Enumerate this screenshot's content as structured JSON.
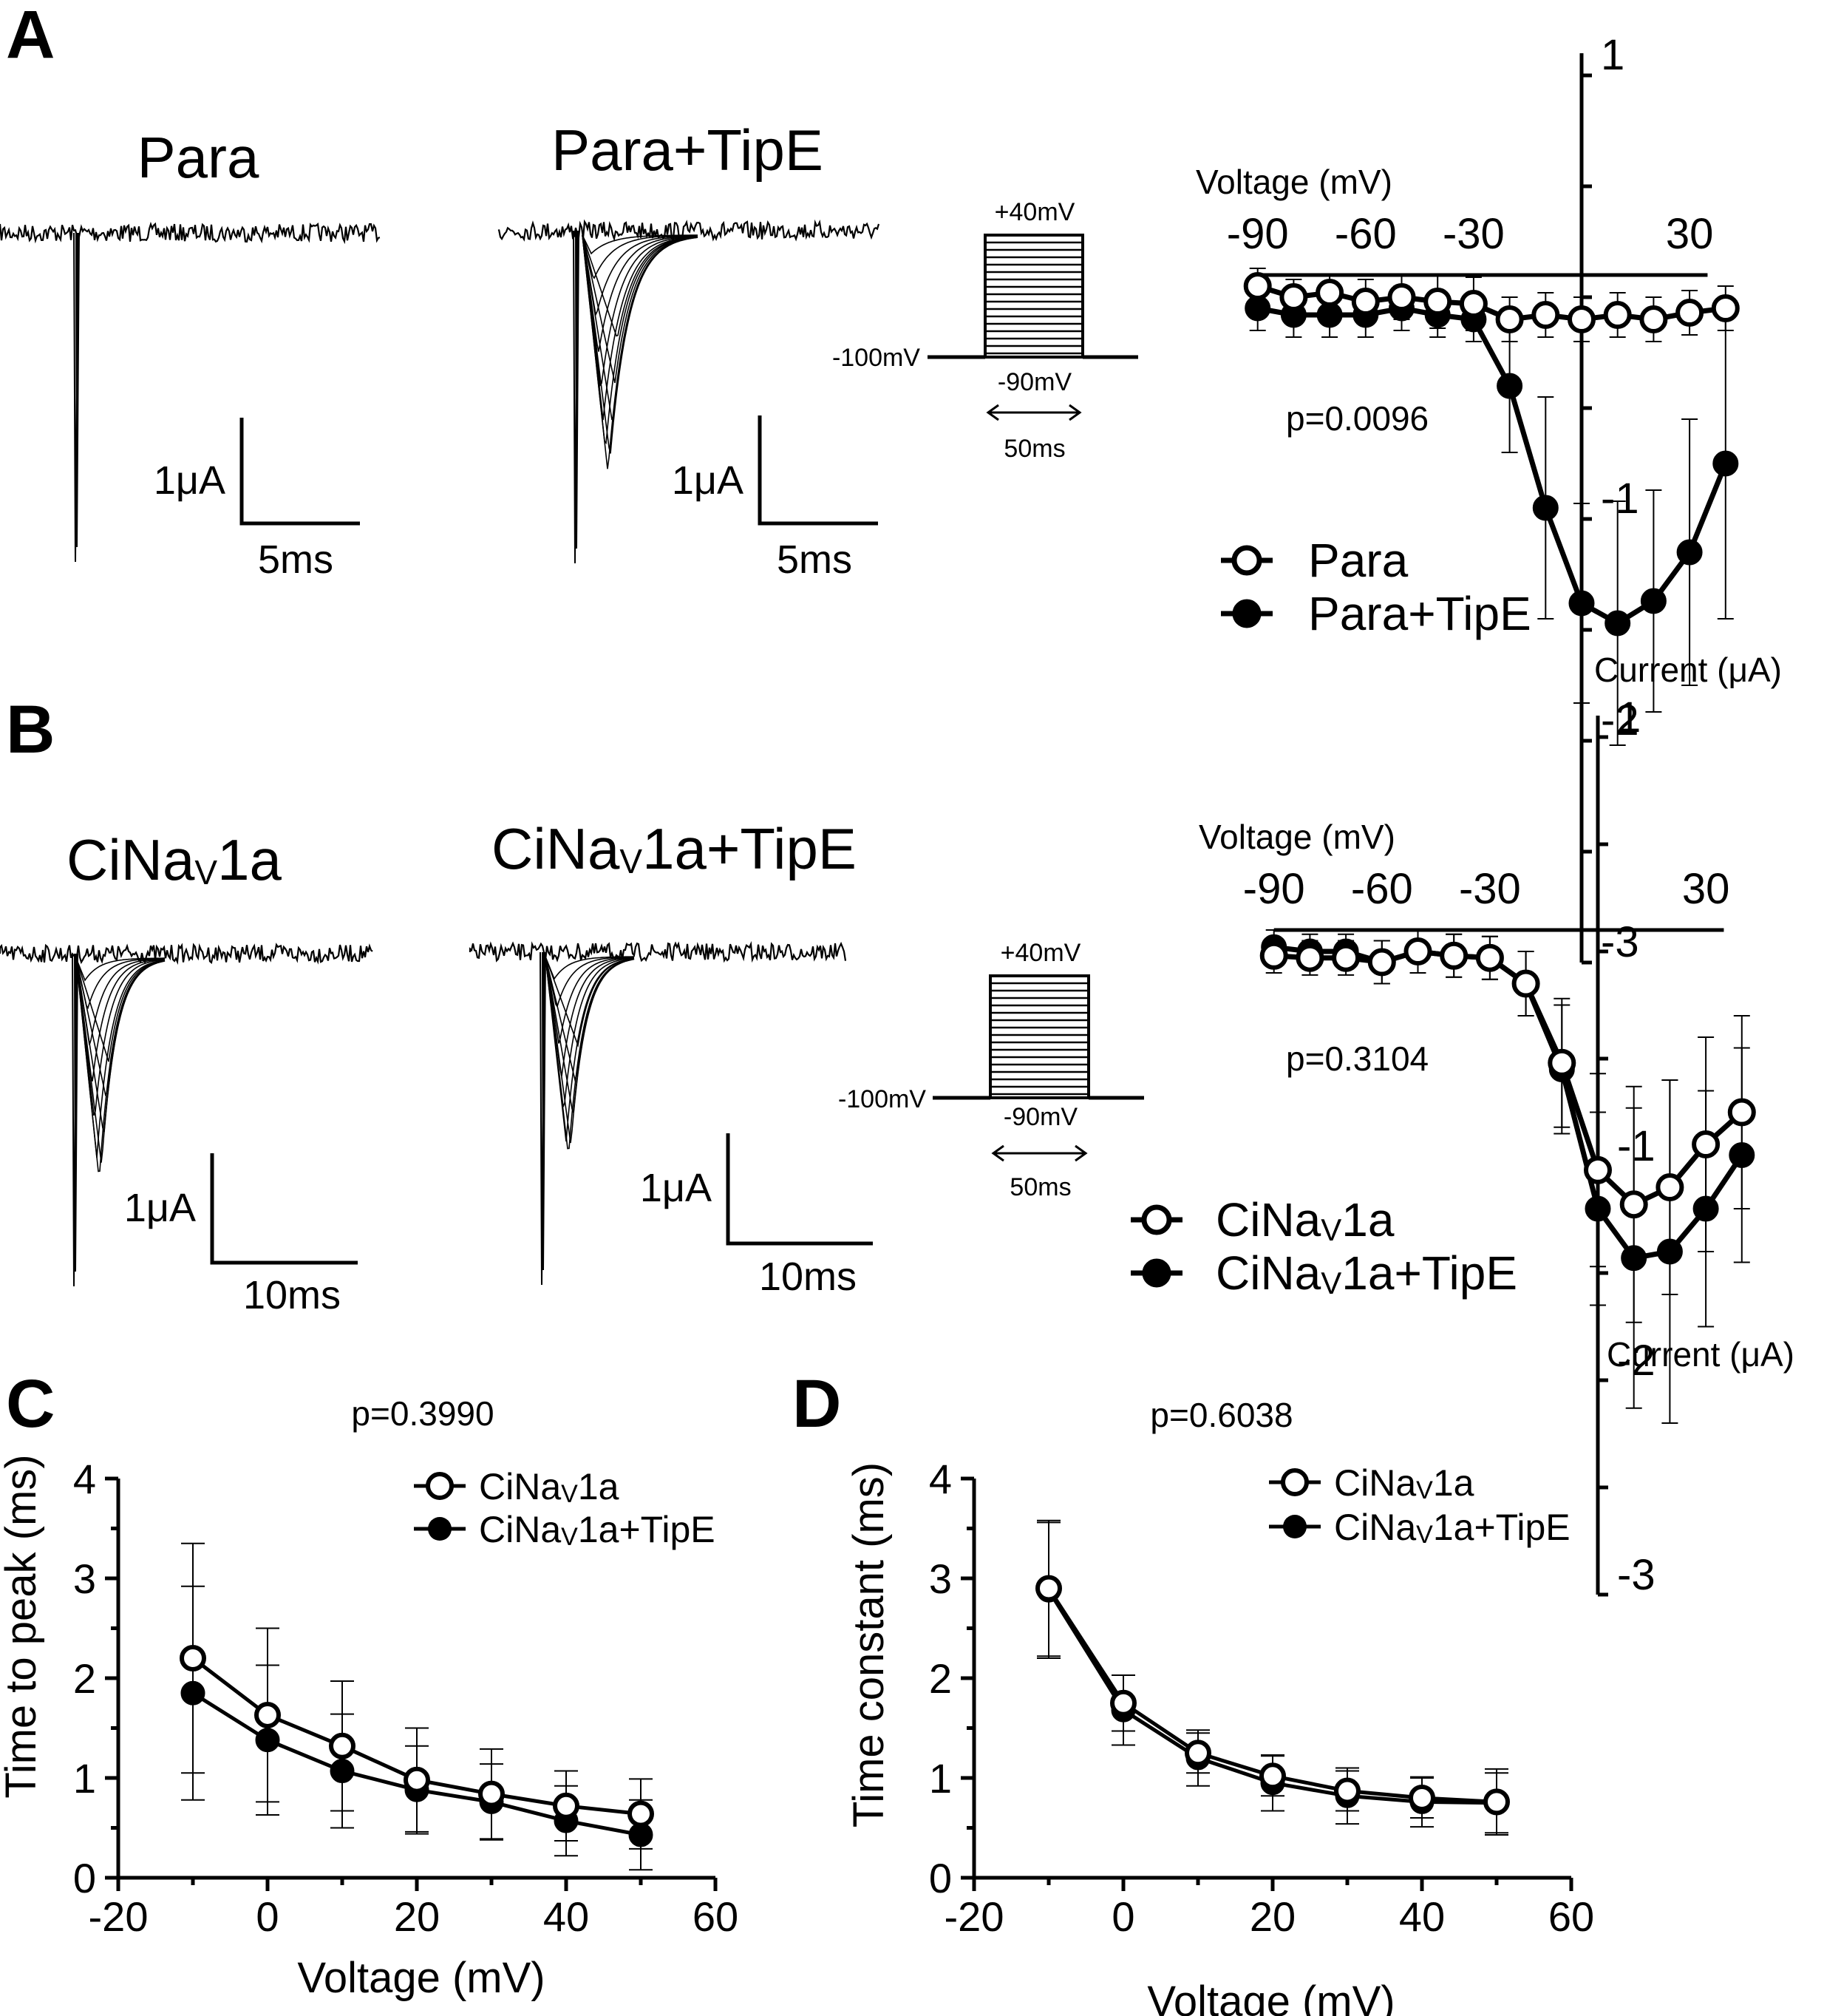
{
  "panels": {
    "A": {
      "letter": "A",
      "trace_titles": [
        "Para",
        "Para+TipE"
      ],
      "scale_bars": [
        {
          "current": "1μA",
          "time": "5ms"
        },
        {
          "current": "1μA",
          "time": "5ms"
        }
      ],
      "protocol": {
        "hold": "-100mV",
        "top": "+40mV",
        "bottom": "-90mV",
        "duration": "50ms"
      }
    },
    "B": {
      "letter": "B",
      "trace_titles": [
        "CiNaV1a",
        "CiNaV1a+TipE"
      ],
      "scale_bars": [
        {
          "current": "1μA",
          "time": "10ms"
        },
        {
          "current": "1μA",
          "time": "10ms"
        }
      ],
      "protocol": {
        "hold": "-100mV",
        "top": "+40mV",
        "bottom": "-90mV",
        "duration": "50ms"
      }
    },
    "C": {
      "letter": "C"
    },
    "D": {
      "letter": "D"
    }
  },
  "chart_data": [
    {
      "id": "A-iv",
      "type": "line",
      "xlabel": "Voltage (mV)",
      "ylabel": "Current (μA)",
      "annotation": "p=0.0096",
      "x_ticks": [
        -90,
        -60,
        -30,
        30
      ],
      "y_ticks": [
        1,
        -1,
        -2,
        -3
      ],
      "xlim": [
        -90,
        35
      ],
      "ylim": [
        -3,
        1
      ],
      "x": [
        -90,
        -80,
        -70,
        -60,
        -50,
        -40,
        -30,
        -20,
        -10,
        0,
        10,
        20,
        30,
        40
      ],
      "series": [
        {
          "name": "Para",
          "marker": "open",
          "values": [
            -0.05,
            -0.1,
            -0.08,
            -0.12,
            -0.1,
            -0.12,
            -0.13,
            -0.2,
            -0.18,
            -0.2,
            -0.18,
            -0.2,
            -0.17,
            -0.15
          ],
          "error": [
            0.08,
            0.08,
            0.08,
            0.1,
            0.1,
            0.12,
            0.12,
            0.1,
            0.1,
            0.1,
            0.1,
            0.1,
            0.1,
            0.1
          ]
        },
        {
          "name": "Para+TipE",
          "marker": "filled",
          "values": [
            -0.15,
            -0.18,
            -0.18,
            -0.18,
            -0.15,
            -0.18,
            -0.2,
            -0.5,
            -1.05,
            -1.48,
            -1.57,
            -1.47,
            -1.25,
            -0.85
          ],
          "error": [
            0.1,
            0.1,
            0.1,
            0.1,
            0.1,
            0.1,
            0.1,
            0.3,
            0.5,
            0.45,
            0.55,
            0.5,
            0.6,
            0.7
          ]
        }
      ]
    },
    {
      "id": "B-iv",
      "type": "line",
      "xlabel": "Voltage (mV)",
      "ylabel": "Current (μA)",
      "annotation": "p=0.3104",
      "x_ticks": [
        -90,
        -60,
        -30,
        30
      ],
      "y_ticks": [
        1,
        -1,
        -2,
        -3
      ],
      "xlim": [
        -90,
        35
      ],
      "ylim": [
        -3,
        1
      ],
      "x": [
        -90,
        -80,
        -70,
        -60,
        -50,
        -40,
        -30,
        -20,
        -10,
        0,
        10,
        20,
        30,
        40
      ],
      "series": [
        {
          "name": "CiNaV1a",
          "marker": "open",
          "values": [
            -0.12,
            -0.13,
            -0.13,
            -0.15,
            -0.1,
            -0.12,
            -0.13,
            -0.25,
            -0.62,
            -1.12,
            -1.28,
            -1.2,
            -1.0,
            -0.85
          ],
          "error": [
            0.08,
            0.08,
            0.08,
            0.1,
            0.1,
            0.1,
            0.1,
            0.15,
            0.3,
            0.45,
            0.55,
            0.5,
            0.5,
            0.45
          ]
        },
        {
          "name": "CiNaV1a+TipE",
          "marker": "filled",
          "values": [
            -0.08,
            -0.1,
            -0.1,
            -0.15,
            -0.1,
            -0.12,
            -0.13,
            -0.25,
            -0.65,
            -1.3,
            -1.53,
            -1.5,
            -1.3,
            -1.05
          ],
          "error": [
            0.08,
            0.08,
            0.08,
            0.1,
            0.1,
            0.1,
            0.1,
            0.15,
            0.3,
            0.45,
            0.7,
            0.8,
            0.55,
            0.5
          ]
        }
      ]
    },
    {
      "id": "C",
      "type": "line",
      "xlabel": "Voltage (mV)",
      "ylabel": "Time to peak (ms)",
      "annotation": "p=0.3990",
      "x_ticks": [
        -20,
        0,
        20,
        40,
        60
      ],
      "y_ticks": [
        0,
        1,
        2,
        3,
        4
      ],
      "xlim": [
        -20,
        60
      ],
      "ylim": [
        0,
        4
      ],
      "x": [
        -10,
        0,
        10,
        20,
        30,
        40,
        50
      ],
      "series": [
        {
          "name": "CiNaV1a",
          "marker": "open",
          "values": [
            2.2,
            1.63,
            1.32,
            0.98,
            0.84,
            0.72,
            0.64
          ],
          "error": [
            1.15,
            0.87,
            0.65,
            0.52,
            0.45,
            0.35,
            0.35
          ]
        },
        {
          "name": "CiNaV1a+TipE",
          "marker": "filled",
          "values": [
            1.85,
            1.38,
            1.07,
            0.88,
            0.76,
            0.57,
            0.43
          ],
          "error": [
            1.07,
            0.75,
            0.57,
            0.44,
            0.38,
            0.35,
            0.35
          ]
        }
      ]
    },
    {
      "id": "D",
      "type": "line",
      "xlabel": "Voltage (mV)",
      "ylabel": "Time constant (ms)",
      "annotation": "p=0.6038",
      "x_ticks": [
        -20,
        0,
        20,
        40,
        60
      ],
      "y_ticks": [
        0,
        1,
        2,
        3,
        4
      ],
      "xlim": [
        -20,
        60
      ],
      "ylim": [
        0,
        4
      ],
      "x": [
        -10,
        0,
        10,
        20,
        30,
        40,
        50
      ],
      "series": [
        {
          "name": "CiNaV1a",
          "marker": "open",
          "values": [
            2.9,
            1.75,
            1.25,
            1.02,
            0.87,
            0.8,
            0.76
          ],
          "error": [
            0.68,
            0.28,
            0.2,
            0.2,
            0.2,
            0.2,
            0.33
          ]
        },
        {
          "name": "CiNaV1a+TipE",
          "marker": "filled",
          "values": [
            2.88,
            1.68,
            1.2,
            0.95,
            0.82,
            0.76,
            0.75
          ],
          "error": [
            0.68,
            0.35,
            0.28,
            0.28,
            0.28,
            0.25,
            0.3
          ]
        }
      ]
    }
  ]
}
